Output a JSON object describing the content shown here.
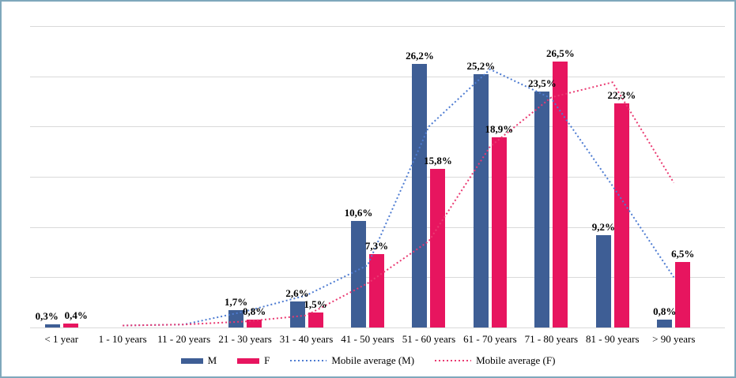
{
  "chart_data": {
    "type": "bar",
    "title": "",
    "xlabel": "",
    "ylabel": "",
    "ylim": [
      0,
      30
    ],
    "y_grid_step": 5,
    "grid": true,
    "y_axis_labels_visible": false,
    "legend_position": "bottom",
    "decimal_separator": ",",
    "categories": [
      "< 1 year",
      "1 - 10 years",
      "11 - 20 years",
      "21 - 30 years",
      "31 - 40 years",
      "41 - 50 years",
      "51 - 60 years",
      "61 - 70 years",
      "71 - 80 years",
      "81 - 90 years",
      "> 90 years"
    ],
    "series": [
      {
        "name": "M",
        "color": "#3E5E95",
        "values": [
          0.3,
          0,
          0,
          1.7,
          2.6,
          10.6,
          26.2,
          25.2,
          23.5,
          9.2,
          0.8
        ],
        "data_labels": [
          "0,3%",
          "",
          "",
          "1,7%",
          "2,6%",
          "10,6%",
          "26,2%",
          "25,2%",
          "23,5%",
          "9,2%",
          "0,8%"
        ]
      },
      {
        "name": "F",
        "color": "#E7155F",
        "values": [
          0.4,
          0,
          0,
          0.8,
          1.5,
          7.3,
          15.8,
          18.9,
          26.5,
          22.3,
          6.5
        ],
        "data_labels": [
          "0,4%",
          "",
          "",
          "0,8%",
          "1,5%",
          "7,3%",
          "15,8%",
          "18,9%",
          "26,5%",
          "22,3%",
          "6,5%"
        ]
      }
    ],
    "lines": [
      {
        "name": "Mobile average (M)",
        "color": "#4E7CD2",
        "style": "dotted",
        "values": [
          null,
          0.2,
          0.3,
          1.6,
          3.2,
          6.2,
          20.0,
          25.7,
          22.8,
          14.1,
          5.0
        ]
      },
      {
        "name": "Mobile average (F)",
        "color": "#EA3A72",
        "style": "dotted",
        "values": [
          null,
          0.2,
          0.3,
          0.6,
          1.2,
          4.4,
          8.6,
          18.0,
          22.9,
          24.4,
          14.4
        ]
      }
    ]
  },
  "colors": {
    "gridline": "#D9D9D9",
    "frame_border": "#7FA8BC",
    "background": "#FFFFFF",
    "label_text": "#000000"
  }
}
